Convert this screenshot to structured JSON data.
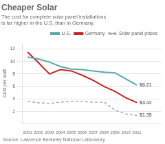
{
  "chart_data": {
    "type": "line",
    "title": "Cheaper Solar",
    "subtitle": "The cost for complete solar panel installations\nis far higher in the U.S. than in Germany.",
    "source": "Source: Lawrence Berkeley National Laboratory",
    "x": [
      2001,
      2002,
      2003,
      2004,
      2005,
      2006,
      2007,
      2008,
      2009,
      2010,
      2011
    ],
    "series": [
      {
        "name": "U.S.",
        "color": "#55aaaa",
        "line_style": "solid",
        "values": [
          10.7,
          10.4,
          9.9,
          9.2,
          8.8,
          8.7,
          8.5,
          8.3,
          8.2,
          7.2,
          6.21
        ]
      },
      {
        "name": "Germany",
        "color": "#cc2222",
        "line_style": "solid",
        "values": [
          11.5,
          9.8,
          8.0,
          8.7,
          8.5,
          7.8,
          7.0,
          6.0,
          5.2,
          4.2,
          3.42
        ]
      },
      {
        "name": "Solar panel prices",
        "color": "#aaaaaa",
        "line_style": "dashed",
        "values": [
          3.6,
          3.4,
          3.3,
          3.5,
          3.6,
          3.6,
          3.5,
          3.5,
          2.2,
          1.6,
          1.35
        ]
      }
    ],
    "annotations": [
      {
        "text": "$6.21",
        "x": 2011,
        "y": 6.21
      },
      {
        "text": "$3.42",
        "x": 2011,
        "y": 3.42
      },
      {
        "text": "$1.35",
        "x": 2011,
        "y": 1.35
      }
    ],
    "xlim": [
      2000.5,
      2013.2
    ],
    "xticks": [
      2001,
      2002,
      2003,
      2004,
      2005,
      2006,
      2007,
      2008,
      2009,
      2010,
      2011
    ],
    "ylim": [
      0,
      13
    ],
    "yticks": [
      2,
      4,
      6,
      8,
      10,
      12
    ],
    "ylabel": "Cost per watt",
    "grid": "y",
    "legend": "top"
  }
}
